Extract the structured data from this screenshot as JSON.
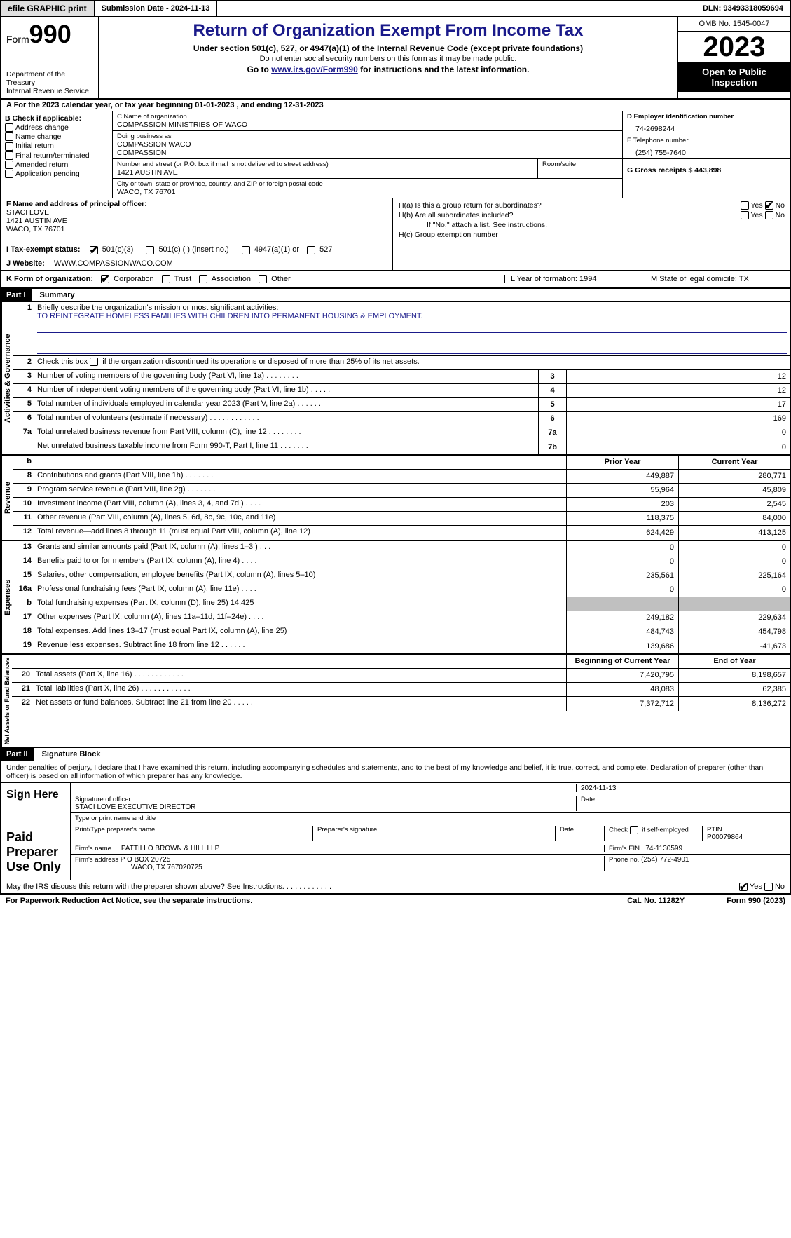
{
  "topbar": {
    "efile": "efile GRAPHIC print",
    "submission": "Submission Date - 2024-11-13",
    "dln": "DLN: 93493318059694"
  },
  "header": {
    "form_word": "Form",
    "form_num": "990",
    "dept": "Department of the Treasury\nInternal Revenue Service",
    "title": "Return of Organization Exempt From Income Tax",
    "subtitle": "Under section 501(c), 527, or 4947(a)(1) of the Internal Revenue Code (except private foundations)",
    "note": "Do not enter social security numbers on this form as it may be made public.",
    "link_pre": "Go to ",
    "link": "www.irs.gov/Form990",
    "link_post": " for instructions and the latest information.",
    "omb": "OMB No. 1545-0047",
    "year": "2023",
    "open": "Open to Public Inspection"
  },
  "row_a": "A For the 2023 calendar year, or tax year beginning 01-01-2023    , and ending 12-31-2023",
  "section_b": {
    "label": "B Check if applicable:",
    "opts": [
      "Address change",
      "Name change",
      "Initial return",
      "Final return/terminated",
      "Amended return",
      "Application pending"
    ]
  },
  "section_c": {
    "name_label": "C Name of organization",
    "name": "COMPASSION MINISTRIES OF WACO",
    "dba_label": "Doing business as",
    "dba": "COMPASSION WACO\nCOMPASSION",
    "street_label": "Number and street (or P.O. box if mail is not delivered to street address)",
    "room_label": "Room/suite",
    "street": "1421 AUSTIN AVE",
    "city_label": "City or town, state or province, country, and ZIP or foreign postal code",
    "city": "WACO, TX  76701"
  },
  "section_d": {
    "label": "D Employer identification number",
    "value": "74-2698244"
  },
  "section_e": {
    "label": "E Telephone number",
    "value": "(254) 755-7640"
  },
  "section_g": {
    "label": "G Gross receipts $ 443,898"
  },
  "section_f": {
    "label": "F  Name and address of principal officer:",
    "lines": [
      "STACI LOVE",
      "1421 AUSTIN AVE",
      "WACO, TX  76701"
    ]
  },
  "section_h": {
    "ha": "H(a)  Is this a group return for subordinates?",
    "hb": "H(b)  Are all subordinates included?",
    "hb_note": "If \"No,\" attach a list. See instructions.",
    "hc": "H(c)  Group exemption number"
  },
  "row_i": {
    "label": "I     Tax-exempt status:",
    "opts": [
      "501(c)(3)",
      "501(c) (  ) (insert no.)",
      "4947(a)(1) or",
      "527"
    ]
  },
  "row_j": {
    "label": "J     Website:",
    "value": "WWW.COMPASSIONWACO.COM"
  },
  "row_k": {
    "label": "K Form of organization:",
    "opts": [
      "Corporation",
      "Trust",
      "Association",
      "Other"
    ],
    "l": "L Year of formation: 1994",
    "m": "M State of legal domicile: TX"
  },
  "part1": {
    "num": "Part I",
    "title": "Summary"
  },
  "mission_label": "Briefly describe the organization's mission or most significant activities:",
  "mission": "TO REINTEGRATE HOMELESS FAMILIES WITH CHILDREN INTO PERMANENT HOUSING & EMPLOYMENT.",
  "line2": "Check this box        if the organization discontinued its operations or disposed of more than 25% of its net assets.",
  "governance": [
    {
      "n": "3",
      "d": "Number of voting members of the governing body (Part VI, line 1a)   .    .    .    .    .    .    .    .",
      "b": "3",
      "v": "12"
    },
    {
      "n": "4",
      "d": "Number of independent voting members of the governing body (Part VI, line 1b)   .    .    .    .    .",
      "b": "4",
      "v": "12"
    },
    {
      "n": "5",
      "d": "Total number of individuals employed in calendar year 2023 (Part V, line 2a)   .    .    .    .    .    .",
      "b": "5",
      "v": "17"
    },
    {
      "n": "6",
      "d": "Total number of volunteers (estimate if necessary)   .    .    .    .    .    .    .    .    .    .    .    .",
      "b": "6",
      "v": "169"
    },
    {
      "n": "7a",
      "d": "Total unrelated business revenue from Part VIII, column (C), line 12   .    .    .    .    .    .    .    .",
      "b": "7a",
      "v": "0"
    },
    {
      "n": "",
      "d": "Net unrelated business taxable income from Form 990-T, Part I, line 11   .    .    .    .    .    .    .",
      "b": "7b",
      "v": "0"
    }
  ],
  "col_headers": {
    "prior": "Prior Year",
    "current": "Current Year",
    "begin": "Beginning of Current Year",
    "end": "End of Year"
  },
  "revenue": [
    {
      "n": "8",
      "d": "Contributions and grants (Part VIII, line 1h)   .    .    .    .    .    .    .",
      "p": "449,887",
      "c": "280,771"
    },
    {
      "n": "9",
      "d": "Program service revenue (Part VIII, line 2g)   .    .    .    .    .    .    .",
      "p": "55,964",
      "c": "45,809"
    },
    {
      "n": "10",
      "d": "Investment income (Part VIII, column (A), lines 3, 4, and 7d )   .    .    .    .",
      "p": "203",
      "c": "2,545"
    },
    {
      "n": "11",
      "d": "Other revenue (Part VIII, column (A), lines 5, 6d, 8c, 9c, 10c, and 11e)",
      "p": "118,375",
      "c": "84,000"
    },
    {
      "n": "12",
      "d": "Total revenue—add lines 8 through 11 (must equal Part VIII, column (A), line 12)",
      "p": "624,429",
      "c": "413,125"
    }
  ],
  "expenses": [
    {
      "n": "13",
      "d": "Grants and similar amounts paid (Part IX, column (A), lines 1–3 )   .    .    .",
      "p": "0",
      "c": "0"
    },
    {
      "n": "14",
      "d": "Benefits paid to or for members (Part IX, column (A), line 4)   .    .    .    .",
      "p": "0",
      "c": "0"
    },
    {
      "n": "15",
      "d": "Salaries, other compensation, employee benefits (Part IX, column (A), lines 5–10)",
      "p": "235,561",
      "c": "225,164"
    },
    {
      "n": "16a",
      "d": "Professional fundraising fees (Part IX, column (A), line 11e)   .    .    .    .",
      "p": "0",
      "c": "0"
    },
    {
      "n": "b",
      "d": "Total fundraising expenses (Part IX, column (D), line 25) 14,425",
      "p": "",
      "c": "",
      "grey": true
    },
    {
      "n": "17",
      "d": "Other expenses (Part IX, column (A), lines 11a–11d, 11f–24e)   .    .    .    .",
      "p": "249,182",
      "c": "229,634"
    },
    {
      "n": "18",
      "d": "Total expenses. Add lines 13–17 (must equal Part IX, column (A), line 25)",
      "p": "484,743",
      "c": "454,798"
    },
    {
      "n": "19",
      "d": "Revenue less expenses. Subtract line 18 from line 12   .    .    .    .    .    .",
      "p": "139,686",
      "c": "-41,673"
    }
  ],
  "netassets": [
    {
      "n": "20",
      "d": "Total assets (Part X, line 16)   .    .    .    .    .    .    .    .    .    .    .    .",
      "p": "7,420,795",
      "c": "8,198,657"
    },
    {
      "n": "21",
      "d": "Total liabilities (Part X, line 26)   .    .    .    .    .    .    .    .    .    .    .    .",
      "p": "48,083",
      "c": "62,385"
    },
    {
      "n": "22",
      "d": "Net assets or fund balances. Subtract line 21 from line 20   .    .    .    .    .",
      "p": "7,372,712",
      "c": "8,136,272"
    }
  ],
  "part2": {
    "num": "Part II",
    "title": "Signature Block"
  },
  "perjury": "Under penalties of perjury, I declare that I have examined this return, including accompanying schedules and statements, and to the best of my knowledge and belief, it is true, correct, and complete. Declaration of preparer (other than officer) is based on all information of which preparer has any knowledge.",
  "sign": {
    "here": "Sign Here",
    "sig_label": "Signature of officer",
    "date_label": "Date",
    "date": "2024-11-13",
    "name": "STACI LOVE  EXECUTIVE DIRECTOR",
    "name_label": "Type or print name and title"
  },
  "paid": {
    "label": "Paid Preparer Use Only",
    "cols": [
      "Print/Type preparer's name",
      "Preparer's signature",
      "Date"
    ],
    "check": "Check         if self-employed",
    "ptin_label": "PTIN",
    "ptin": "P00079864",
    "firm_label": "Firm's name",
    "firm": "PATTILLO BROWN & HILL LLP",
    "ein_label": "Firm's EIN",
    "ein": "74-1130599",
    "addr_label": "Firm's address",
    "addr1": "P O BOX 20725",
    "addr2": "WACO, TX  767020725",
    "phone_label": "Phone no.",
    "phone": "(254) 772-4901"
  },
  "discuss": "May the IRS discuss this return with the preparer shown above? See Instructions.   .    .    .    .    .    .    .    .    .    .    .",
  "footer": {
    "pra": "For Paperwork Reduction Act Notice, see the separate instructions.",
    "cat": "Cat. No. 11282Y",
    "form": "Form 990 (2023)"
  },
  "vlabels": {
    "gov": "Activities & Governance",
    "rev": "Revenue",
    "exp": "Expenses",
    "net": "Net Assets or Fund Balances"
  }
}
